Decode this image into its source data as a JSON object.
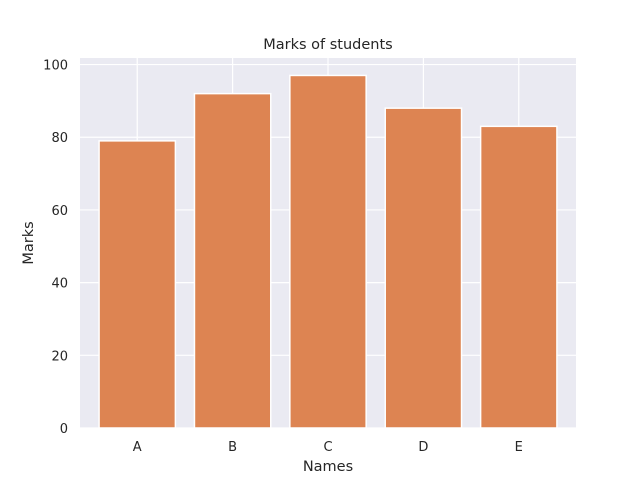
{
  "chart_data": {
    "type": "bar",
    "title": "Marks of students",
    "xlabel": "Names",
    "ylabel": "Marks",
    "categories": [
      "A",
      "B",
      "C",
      "D",
      "E"
    ],
    "values": [
      79,
      92,
      97,
      88,
      83
    ],
    "ylim": [
      0,
      100
    ],
    "yticks": [
      0,
      20,
      40,
      60,
      80,
      100
    ],
    "grid": true,
    "legend": "none",
    "colors": {
      "bar": "#dd8452",
      "plot_background": "#eaeaf2",
      "grid": "#ffffff"
    }
  }
}
